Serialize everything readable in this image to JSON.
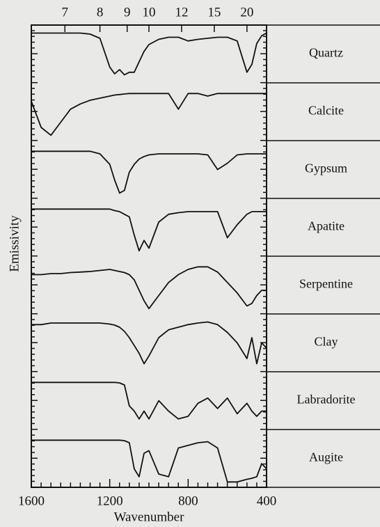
{
  "chart_data": {
    "type": "line",
    "xlabel": "Wavenumber",
    "ylabel": "Emissivity",
    "xlim": [
      1600,
      400
    ],
    "xticks": [
      1600,
      1200,
      800,
      400
    ],
    "xminorticks": [
      1550,
      1500,
      1450,
      1400,
      1350,
      1300,
      1250,
      1150,
      1100,
      1050,
      1000,
      950,
      900,
      850,
      750,
      700,
      650,
      600,
      550,
      500,
      450
    ],
    "x2ticks": [
      {
        "value": 1428.6,
        "label": "7"
      },
      {
        "value": 1250,
        "label": "8"
      },
      {
        "value": 1111.1,
        "label": "9"
      },
      {
        "value": 1000,
        "label": "10"
      },
      {
        "value": 833.3,
        "label": "12"
      },
      {
        "value": 666.7,
        "label": "15"
      },
      {
        "value": 500,
        "label": "20"
      }
    ],
    "ylim": [
      0,
      1
    ],
    "x": [
      1600,
      1550,
      1500,
      1450,
      1400,
      1350,
      1300,
      1250,
      1200,
      1175,
      1150,
      1125,
      1100,
      1075,
      1050,
      1025,
      1000,
      950,
      900,
      850,
      800,
      750,
      700,
      650,
      600,
      550,
      500,
      475,
      450,
      425,
      400
    ],
    "series": [
      {
        "name": "Quartz",
        "color": "#111111",
        "values": [
          0.9,
          0.9,
          0.9,
          0.9,
          0.9,
          0.9,
          0.88,
          0.8,
          0.25,
          0.12,
          0.2,
          0.1,
          0.15,
          0.15,
          0.35,
          0.55,
          0.68,
          0.78,
          0.82,
          0.82,
          0.75,
          0.78,
          0.8,
          0.82,
          0.82,
          0.75,
          0.15,
          0.3,
          0.7,
          0.85,
          0.9
        ]
      },
      {
        "name": "Calcite",
        "color": "#111111",
        "values": [
          0.7,
          0.2,
          0.05,
          0.3,
          0.55,
          0.65,
          0.72,
          0.76,
          0.8,
          0.82,
          0.83,
          0.84,
          0.85,
          0.85,
          0.85,
          0.85,
          0.85,
          0.85,
          0.85,
          0.55,
          0.85,
          0.85,
          0.8,
          0.85,
          0.85,
          0.85,
          0.85,
          0.85,
          0.85,
          0.85,
          0.85
        ]
      },
      {
        "name": "Gypsum",
        "color": "#111111",
        "values": [
          0.85,
          0.85,
          0.85,
          0.85,
          0.85,
          0.85,
          0.85,
          0.8,
          0.6,
          0.3,
          0.05,
          0.1,
          0.45,
          0.6,
          0.7,
          0.75,
          0.78,
          0.8,
          0.8,
          0.8,
          0.8,
          0.8,
          0.78,
          0.5,
          0.62,
          0.78,
          0.8,
          0.8,
          0.8,
          0.8,
          0.8
        ]
      },
      {
        "name": "Apatite",
        "color": "#111111",
        "values": [
          0.85,
          0.85,
          0.85,
          0.85,
          0.85,
          0.85,
          0.85,
          0.85,
          0.85,
          0.82,
          0.8,
          0.75,
          0.7,
          0.35,
          0.05,
          0.25,
          0.1,
          0.6,
          0.75,
          0.78,
          0.8,
          0.8,
          0.8,
          0.8,
          0.3,
          0.55,
          0.75,
          0.8,
          0.8,
          0.8,
          0.8
        ]
      },
      {
        "name": "Serpentine",
        "color": "#111111",
        "values": [
          0.7,
          0.7,
          0.72,
          0.72,
          0.74,
          0.75,
          0.76,
          0.78,
          0.8,
          0.78,
          0.76,
          0.74,
          0.7,
          0.6,
          0.4,
          0.2,
          0.05,
          0.3,
          0.55,
          0.7,
          0.8,
          0.85,
          0.85,
          0.75,
          0.55,
          0.35,
          0.1,
          0.15,
          0.3,
          0.4,
          0.4
        ]
      },
      {
        "name": "Clay",
        "color": "#111111",
        "values": [
          0.85,
          0.85,
          0.88,
          0.88,
          0.88,
          0.88,
          0.88,
          0.88,
          0.86,
          0.84,
          0.8,
          0.72,
          0.6,
          0.45,
          0.3,
          0.1,
          0.25,
          0.6,
          0.75,
          0.8,
          0.85,
          0.88,
          0.9,
          0.85,
          0.7,
          0.5,
          0.2,
          0.6,
          0.1,
          0.5,
          0.4
        ]
      },
      {
        "name": "Labradorite",
        "color": "#111111",
        "values": [
          0.85,
          0.85,
          0.85,
          0.85,
          0.85,
          0.85,
          0.85,
          0.85,
          0.85,
          0.85,
          0.84,
          0.8,
          0.4,
          0.3,
          0.15,
          0.3,
          0.15,
          0.5,
          0.3,
          0.15,
          0.2,
          0.45,
          0.55,
          0.35,
          0.55,
          0.25,
          0.45,
          0.3,
          0.2,
          0.3,
          0.3
        ]
      },
      {
        "name": "Augite",
        "color": "#111111",
        "values": [
          0.85,
          0.85,
          0.85,
          0.85,
          0.85,
          0.85,
          0.85,
          0.85,
          0.85,
          0.85,
          0.85,
          0.84,
          0.8,
          0.3,
          0.15,
          0.6,
          0.65,
          0.2,
          0.15,
          0.7,
          0.75,
          0.8,
          0.82,
          0.7,
          0.05,
          0.05,
          0.1,
          0.12,
          0.15,
          0.4,
          0.3
        ]
      }
    ]
  }
}
